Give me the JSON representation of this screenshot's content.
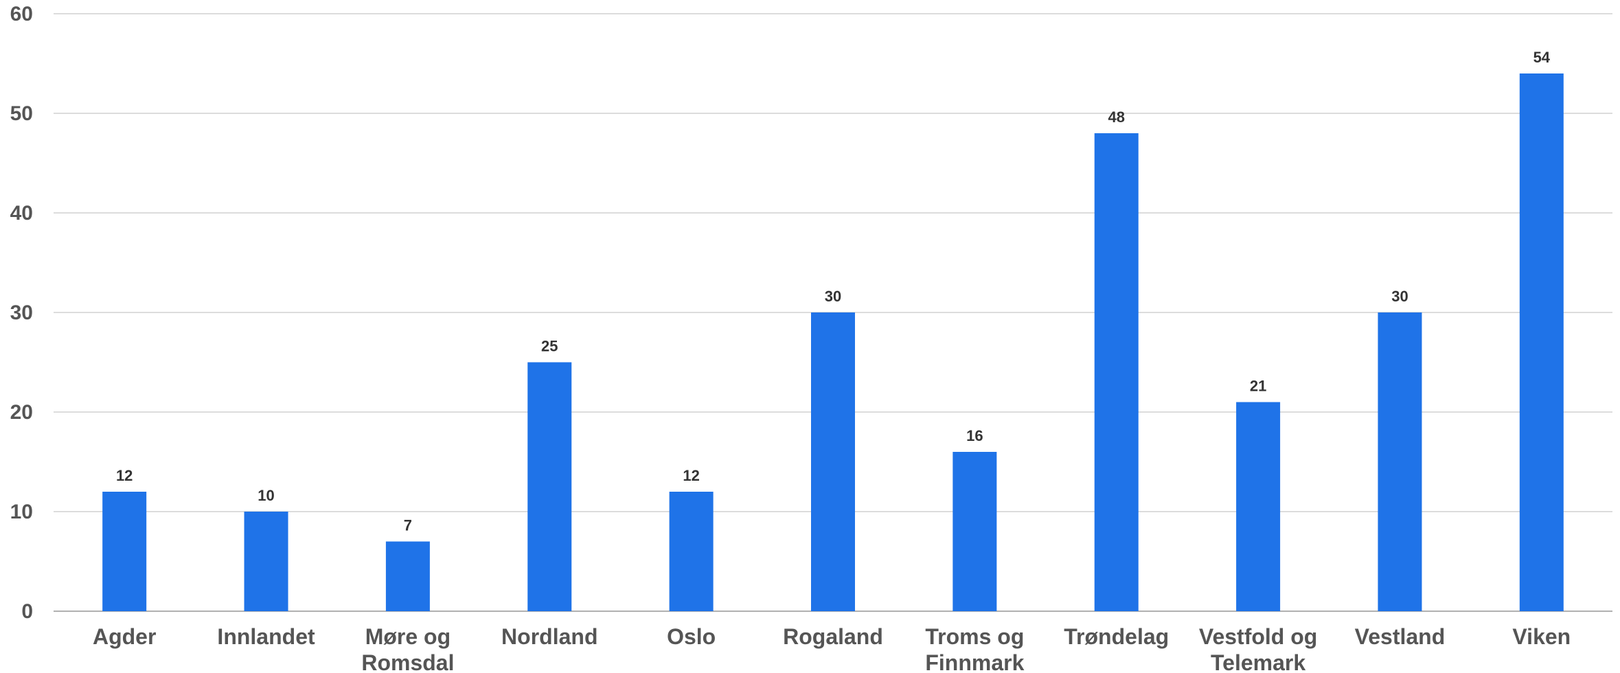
{
  "chart_data": {
    "type": "bar",
    "categories": [
      [
        "Agder"
      ],
      [
        "Innlandet"
      ],
      [
        "Møre og",
        "Romsdal"
      ],
      [
        "Nordland"
      ],
      [
        "Oslo"
      ],
      [
        "Rogaland"
      ],
      [
        "Troms og",
        "Finnmark"
      ],
      [
        "Trøndelag"
      ],
      [
        "Vestfold og",
        "Telemark"
      ],
      [
        "Vestland"
      ],
      [
        "Viken"
      ]
    ],
    "values": [
      12,
      10,
      7,
      25,
      12,
      30,
      16,
      48,
      21,
      30,
      54
    ],
    "ylim": [
      0,
      60
    ],
    "yticks": [
      0,
      10,
      20,
      30,
      40,
      50,
      60
    ],
    "grid": true,
    "bar_color": "#1f73e8",
    "title": "",
    "xlabel": "",
    "ylabel": ""
  }
}
